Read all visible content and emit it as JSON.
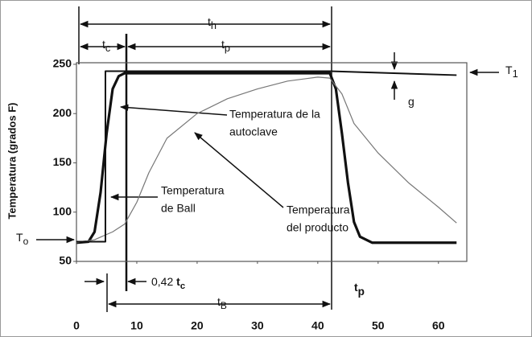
{
  "chart_data": {
    "type": "line",
    "y_label": "Temperatura (grados F)",
    "xlim": [
      0,
      64.7
    ],
    "ylim": [
      50,
      251.6
    ],
    "xticks": [
      0,
      10,
      20,
      30,
      40,
      50,
      60
    ],
    "yticks": [
      50,
      100,
      150,
      200,
      250
    ],
    "series": [
      {
        "name": [
          "Temperatura de la",
          "autoclave"
        ],
        "color": "#111111",
        "width": 3.2,
        "x": [
          0,
          2,
          3,
          4,
          5,
          6,
          7,
          8,
          42,
          43,
          44,
          45,
          46,
          47,
          49,
          63
        ],
        "values": [
          69,
          70,
          80,
          120,
          180,
          225,
          238,
          241,
          241,
          225,
          180,
          130,
          90,
          75,
          69,
          69
        ]
      },
      {
        "name": [
          "Temperatura",
          "del producto"
        ],
        "color": "#777777",
        "width": 1.2,
        "x": [
          0,
          3,
          6,
          8,
          10,
          12,
          15,
          20,
          25,
          30,
          35,
          40,
          42,
          44,
          46,
          50,
          55,
          60,
          63
        ],
        "values": [
          69,
          72,
          80,
          88,
          110,
          140,
          175,
          200,
          215,
          225,
          233,
          237,
          236,
          220,
          190,
          160,
          130,
          105,
          89
        ]
      },
      {
        "name": [
          "Temperatura",
          "de Ball"
        ],
        "color": "#111111",
        "width": 2,
        "x": [
          0,
          4.8,
          4.8,
          42,
          63
        ],
        "values": [
          70,
          70,
          243,
          243,
          239
        ]
      }
    ],
    "annotations": [
      {
        "text": "t",
        "sub": "h"
      },
      {
        "text": "t",
        "sub": "c"
      },
      {
        "text": "t",
        "sub": "p"
      },
      {
        "text": "T",
        "sub": "1"
      },
      {
        "text": "g"
      },
      {
        "text": "T",
        "sub": "o"
      },
      {
        "text": "0,42 ",
        "text2": "t",
        "sub": "c"
      },
      {
        "text": "t",
        "sub": "B"
      },
      {
        "text": "t",
        "sub": "p"
      }
    ]
  }
}
